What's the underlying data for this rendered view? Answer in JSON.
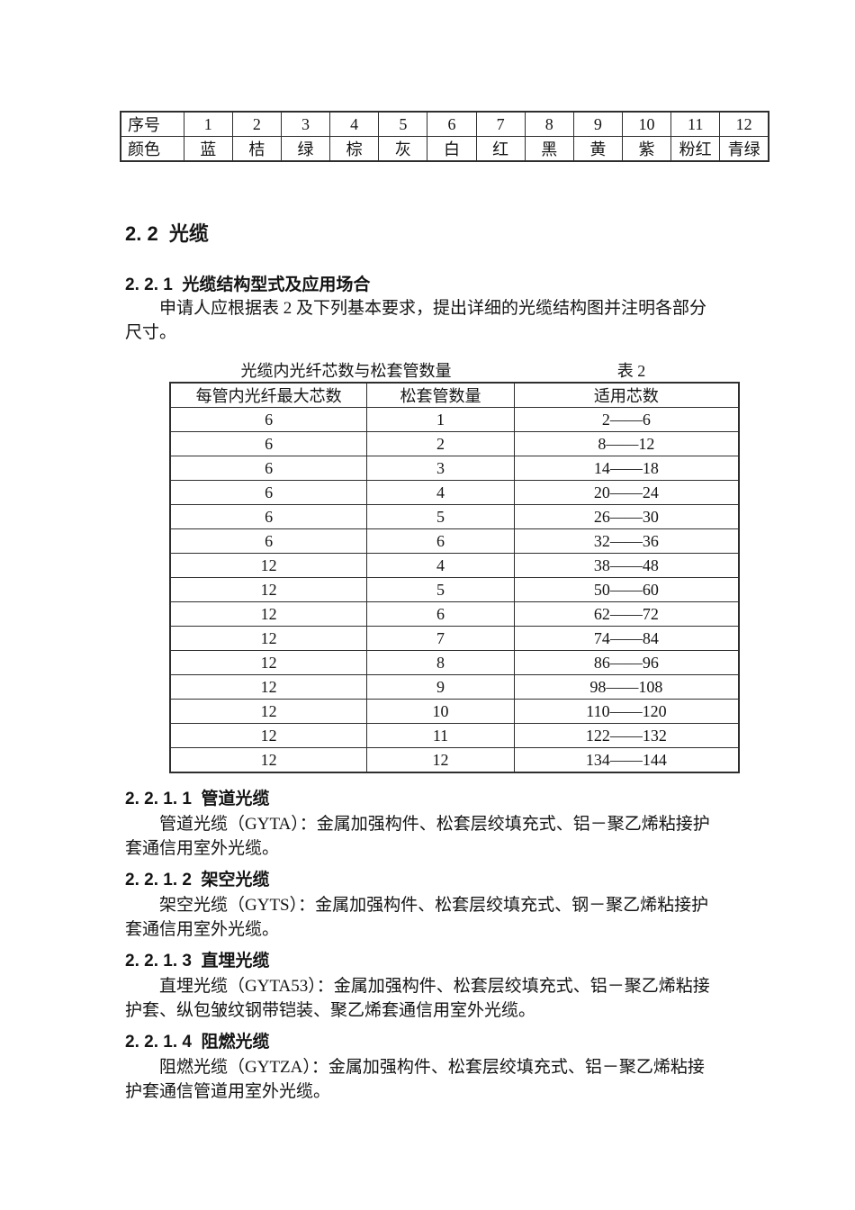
{
  "color_table": {
    "rows": [
      {
        "label": "序号",
        "values": [
          "1",
          "2",
          "3",
          "4",
          "5",
          "6",
          "7",
          "8",
          "9",
          "10",
          "11",
          "12"
        ]
      },
      {
        "label": "颜色",
        "values": [
          "蓝",
          "桔",
          "绿",
          "棕",
          "灰",
          "白",
          "红",
          "黑",
          "黄",
          "紫",
          "粉红",
          "青绿"
        ]
      }
    ]
  },
  "section": {
    "heading": "2. 2  光缆",
    "sub_heading": "2. 2. 1  光缆结构型式及应用场合",
    "intro_paragraph": "申请人应根据表 2 及下列基本要求，提出详细的光缆结构图并注明各部分尺寸。"
  },
  "table2": {
    "title": "光缆内光纤芯数与松套管数量",
    "label": "表 2",
    "headers": [
      "每管内光纤最大芯数",
      "松套管数量",
      "适用芯数"
    ],
    "rows": [
      [
        "6",
        "1",
        "2——6"
      ],
      [
        "6",
        "2",
        "8——12"
      ],
      [
        "6",
        "3",
        "14——18"
      ],
      [
        "6",
        "4",
        "20——24"
      ],
      [
        "6",
        "5",
        "26——30"
      ],
      [
        "6",
        "6",
        "32——36"
      ],
      [
        "12",
        "4",
        "38——48"
      ],
      [
        "12",
        "5",
        "50——60"
      ],
      [
        "12",
        "6",
        "62——72"
      ],
      [
        "12",
        "7",
        "74——84"
      ],
      [
        "12",
        "8",
        "86——96"
      ],
      [
        "12",
        "9",
        "98——108"
      ],
      [
        "12",
        "10",
        "110——120"
      ],
      [
        "12",
        "11",
        "122——132"
      ],
      [
        "12",
        "12",
        "134——144"
      ]
    ]
  },
  "subsections": [
    {
      "heading": "2. 2. 1. 1  管道光缆",
      "body": "管道光缆（GYTA）：金属加强构件、松套层绞填充式、铝－聚乙烯粘接护套通信用室外光缆。"
    },
    {
      "heading": "2. 2. 1. 2  架空光缆",
      "body": "架空光缆（GYTS）：金属加强构件、松套层绞填充式、钢－聚乙烯粘接护套通信用室外光缆。"
    },
    {
      "heading": "2. 2. 1. 3  直埋光缆",
      "body": "直埋光缆（GYTA53）：金属加强构件、松套层绞填充式、铝－聚乙烯粘接护套、纵包皱纹钢带铠装、聚乙烯套通信用室外光缆。"
    },
    {
      "heading": "2. 2. 1. 4  阻燃光缆",
      "body": "阻燃光缆（GYTZA）：金属加强构件、松套层绞填充式、铝－聚乙烯粘接护套通信管道用室外光缆。"
    }
  ]
}
